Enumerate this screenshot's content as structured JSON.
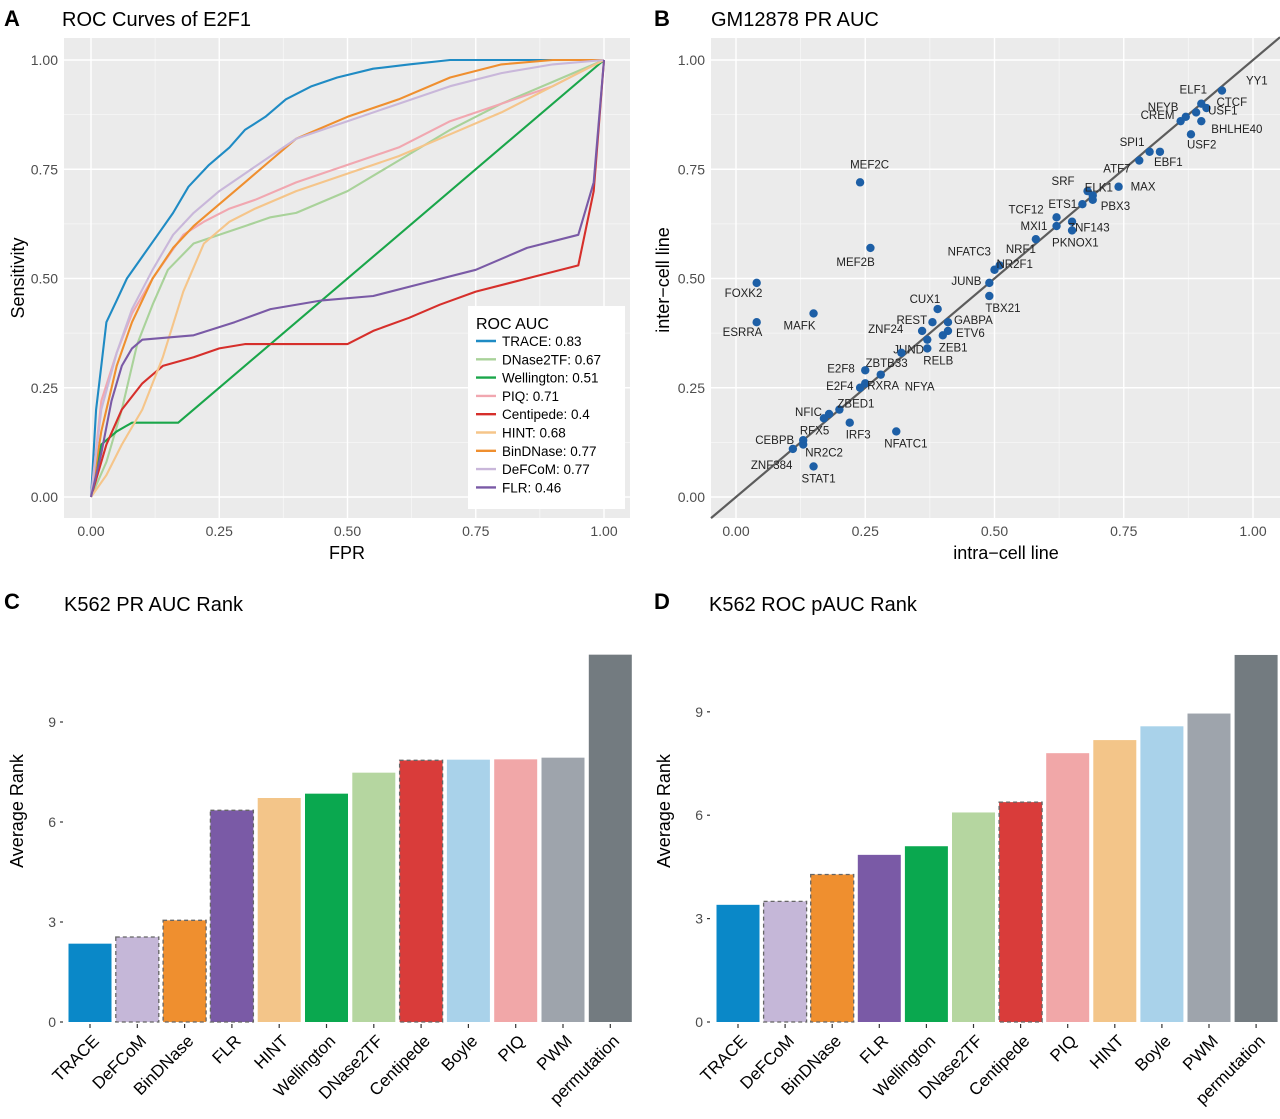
{
  "chart_data": [
    {
      "panel": "A",
      "type": "line",
      "title": "ROC Curves of E2F1",
      "xlabel": "FPR",
      "ylabel": "Sensitivity",
      "xlim": [
        0,
        1
      ],
      "ylim": [
        0,
        1
      ],
      "xticks": [
        "0.00",
        "0.25",
        "0.50",
        "0.75",
        "1.00"
      ],
      "yticks": [
        "0.00",
        "0.25",
        "0.50",
        "0.75",
        "1.00"
      ],
      "grid": true,
      "legend": {
        "title": "ROC AUC",
        "position": "bottom-right"
      },
      "series": [
        {
          "name": "TRACE: 0.83",
          "color": "#1f8bc4",
          "points": [
            [
              0,
              0
            ],
            [
              0.01,
              0.2
            ],
            [
              0.02,
              0.3
            ],
            [
              0.03,
              0.4
            ],
            [
              0.05,
              0.45
            ],
            [
              0.07,
              0.5
            ],
            [
              0.1,
              0.55
            ],
            [
              0.13,
              0.6
            ],
            [
              0.16,
              0.65
            ],
            [
              0.19,
              0.71
            ],
            [
              0.23,
              0.76
            ],
            [
              0.27,
              0.8
            ],
            [
              0.3,
              0.84
            ],
            [
              0.34,
              0.87
            ],
            [
              0.38,
              0.91
            ],
            [
              0.43,
              0.94
            ],
            [
              0.48,
              0.96
            ],
            [
              0.55,
              0.98
            ],
            [
              0.62,
              0.99
            ],
            [
              0.7,
              1.0
            ],
            [
              1.0,
              1.0
            ]
          ]
        },
        {
          "name": "DNase2TF: 0.67",
          "color": "#a9d29a",
          "points": [
            [
              0,
              0
            ],
            [
              0.03,
              0.08
            ],
            [
              0.06,
              0.2
            ],
            [
              0.09,
              0.35
            ],
            [
              0.12,
              0.44
            ],
            [
              0.15,
              0.52
            ],
            [
              0.2,
              0.58
            ],
            [
              0.25,
              0.6
            ],
            [
              0.3,
              0.62
            ],
            [
              0.35,
              0.64
            ],
            [
              0.4,
              0.65
            ],
            [
              0.5,
              0.7
            ],
            [
              0.6,
              0.77
            ],
            [
              0.7,
              0.84
            ],
            [
              0.8,
              0.9
            ],
            [
              0.9,
              0.95
            ],
            [
              1.0,
              1.0
            ]
          ]
        },
        {
          "name": "Wellington: 0.51",
          "color": "#1aa64a",
          "points": [
            [
              0,
              0
            ],
            [
              0.02,
              0.12
            ],
            [
              0.05,
              0.15
            ],
            [
              0.08,
              0.17
            ],
            [
              0.17,
              0.17
            ],
            [
              1.0,
              1.0
            ]
          ]
        },
        {
          "name": "PIQ: 0.71",
          "color": "#f1a7b0",
          "points": [
            [
              0,
              0
            ],
            [
              0.02,
              0.22
            ],
            [
              0.05,
              0.33
            ],
            [
              0.08,
              0.42
            ],
            [
              0.12,
              0.5
            ],
            [
              0.15,
              0.55
            ],
            [
              0.18,
              0.6
            ],
            [
              0.22,
              0.63
            ],
            [
              0.27,
              0.66
            ],
            [
              0.32,
              0.68
            ],
            [
              0.4,
              0.72
            ],
            [
              0.5,
              0.76
            ],
            [
              0.6,
              0.8
            ],
            [
              0.7,
              0.86
            ],
            [
              0.8,
              0.9
            ],
            [
              0.9,
              0.94
            ],
            [
              1.0,
              1.0
            ]
          ]
        },
        {
          "name": "Centipede: 0.4",
          "color": "#d62f2b",
          "points": [
            [
              0,
              0
            ],
            [
              0.03,
              0.12
            ],
            [
              0.06,
              0.2
            ],
            [
              0.1,
              0.26
            ],
            [
              0.14,
              0.3
            ],
            [
              0.2,
              0.32
            ],
            [
              0.25,
              0.34
            ],
            [
              0.3,
              0.35
            ],
            [
              0.5,
              0.35
            ],
            [
              0.55,
              0.38
            ],
            [
              0.62,
              0.41
            ],
            [
              0.68,
              0.44
            ],
            [
              0.75,
              0.47
            ],
            [
              0.85,
              0.5
            ],
            [
              0.95,
              0.53
            ],
            [
              0.98,
              0.7
            ],
            [
              1.0,
              1.0
            ]
          ]
        },
        {
          "name": "HINT: 0.68",
          "color": "#f5c58a",
          "points": [
            [
              0,
              0
            ],
            [
              0.03,
              0.05
            ],
            [
              0.06,
              0.12
            ],
            [
              0.1,
              0.2
            ],
            [
              0.14,
              0.32
            ],
            [
              0.18,
              0.47
            ],
            [
              0.22,
              0.58
            ],
            [
              0.27,
              0.63
            ],
            [
              0.32,
              0.66
            ],
            [
              0.4,
              0.7
            ],
            [
              0.5,
              0.74
            ],
            [
              0.6,
              0.78
            ],
            [
              0.7,
              0.83
            ],
            [
              0.8,
              0.88
            ],
            [
              0.9,
              0.94
            ],
            [
              1.0,
              1.0
            ]
          ]
        },
        {
          "name": "BinDNase: 0.77",
          "color": "#ef8f2f",
          "points": [
            [
              0,
              0
            ],
            [
              0.02,
              0.15
            ],
            [
              0.05,
              0.3
            ],
            [
              0.08,
              0.4
            ],
            [
              0.12,
              0.5
            ],
            [
              0.16,
              0.57
            ],
            [
              0.2,
              0.62
            ],
            [
              0.25,
              0.67
            ],
            [
              0.3,
              0.72
            ],
            [
              0.35,
              0.77
            ],
            [
              0.4,
              0.82
            ],
            [
              0.5,
              0.87
            ],
            [
              0.6,
              0.91
            ],
            [
              0.7,
              0.96
            ],
            [
              0.8,
              0.99
            ],
            [
              0.9,
              1.0
            ],
            [
              1.0,
              1.0
            ]
          ]
        },
        {
          "name": "DeFCoM: 0.77",
          "color": "#c9b7da",
          "points": [
            [
              0,
              0
            ],
            [
              0.02,
              0.2
            ],
            [
              0.05,
              0.33
            ],
            [
              0.08,
              0.43
            ],
            [
              0.12,
              0.52
            ],
            [
              0.16,
              0.6
            ],
            [
              0.2,
              0.65
            ],
            [
              0.25,
              0.7
            ],
            [
              0.3,
              0.74
            ],
            [
              0.35,
              0.78
            ],
            [
              0.4,
              0.82
            ],
            [
              0.5,
              0.86
            ],
            [
              0.6,
              0.9
            ],
            [
              0.7,
              0.94
            ],
            [
              0.8,
              0.97
            ],
            [
              0.9,
              0.99
            ],
            [
              1.0,
              1.0
            ]
          ]
        },
        {
          "name": "FLR: 0.46",
          "color": "#7a5aa6",
          "points": [
            [
              0,
              0
            ],
            [
              0.02,
              0.1
            ],
            [
              0.04,
              0.22
            ],
            [
              0.06,
              0.3
            ],
            [
              0.08,
              0.34
            ],
            [
              0.1,
              0.36
            ],
            [
              0.2,
              0.37
            ],
            [
              0.28,
              0.4
            ],
            [
              0.35,
              0.43
            ],
            [
              0.45,
              0.45
            ],
            [
              0.55,
              0.46
            ],
            [
              0.65,
              0.49
            ],
            [
              0.75,
              0.52
            ],
            [
              0.85,
              0.57
            ],
            [
              0.95,
              0.6
            ],
            [
              0.98,
              0.72
            ],
            [
              1.0,
              1.0
            ]
          ]
        }
      ]
    },
    {
      "panel": "B",
      "type": "scatter",
      "title": "GM12878 PR AUC",
      "xlabel": "intra−cell line",
      "ylabel": "inter−cell line",
      "xlim": [
        -0.05,
        1.05
      ],
      "ylim": [
        -0.05,
        1.05
      ],
      "xticks": [
        "0.00",
        "0.25",
        "0.50",
        "0.75",
        "1.00"
      ],
      "yticks": [
        "0.00",
        "0.25",
        "0.50",
        "0.75",
        "1.00"
      ],
      "grid": true,
      "reference_line": "y = x",
      "point_color": "#1d5fa6",
      "points": [
        {
          "label": "YY1",
          "x": 0.94,
          "y": 0.93
        },
        {
          "label": "ELF1",
          "x": 0.9,
          "y": 0.9
        },
        {
          "label": "CTCF",
          "x": 0.91,
          "y": 0.89
        },
        {
          "label": "NFYB",
          "x": 0.87,
          "y": 0.87
        },
        {
          "label": "USF1",
          "x": 0.89,
          "y": 0.88
        },
        {
          "label": "BHLHE40",
          "x": 0.9,
          "y": 0.86
        },
        {
          "label": "CREM",
          "x": 0.86,
          "y": 0.86
        },
        {
          "label": "USF2",
          "x": 0.88,
          "y": 0.83
        },
        {
          "label": "SPI1",
          "x": 0.8,
          "y": 0.79
        },
        {
          "label": "EBF1",
          "x": 0.82,
          "y": 0.79
        },
        {
          "label": "ATF7",
          "x": 0.78,
          "y": 0.77
        },
        {
          "label": "MAX",
          "x": 0.74,
          "y": 0.71
        },
        {
          "label": "SRF",
          "x": 0.68,
          "y": 0.7
        },
        {
          "label": "ELK1",
          "x": 0.69,
          "y": 0.69
        },
        {
          "label": "PBX3",
          "x": 0.69,
          "y": 0.68
        },
        {
          "label": "ETS1",
          "x": 0.67,
          "y": 0.67
        },
        {
          "label": "ZNF143",
          "x": 0.65,
          "y": 0.63
        },
        {
          "label": "TCF12",
          "x": 0.62,
          "y": 0.64
        },
        {
          "label": "MXI1",
          "x": 0.62,
          "y": 0.62
        },
        {
          "label": "PKNOX1",
          "x": 0.65,
          "y": 0.61
        },
        {
          "label": "NRF1",
          "x": 0.58,
          "y": 0.59
        },
        {
          "label": "MEF2C",
          "x": 0.24,
          "y": 0.72
        },
        {
          "label": "MEF2B",
          "x": 0.26,
          "y": 0.57
        },
        {
          "label": "NFATC3",
          "x": 0.51,
          "y": 0.53
        },
        {
          "label": "NR2F1",
          "x": 0.5,
          "y": 0.52
        },
        {
          "label": "JUNB",
          "x": 0.49,
          "y": 0.49
        },
        {
          "label": "TBX21",
          "x": 0.49,
          "y": 0.46
        },
        {
          "label": "FOXK2",
          "x": 0.04,
          "y": 0.49
        },
        {
          "label": "ESRRA",
          "x": 0.04,
          "y": 0.4
        },
        {
          "label": "MAFK",
          "x": 0.15,
          "y": 0.42
        },
        {
          "label": "CUX1",
          "x": 0.39,
          "y": 0.43
        },
        {
          "label": "REST",
          "x": 0.38,
          "y": 0.4
        },
        {
          "label": "GABPA",
          "x": 0.41,
          "y": 0.4
        },
        {
          "label": "ETV6",
          "x": 0.41,
          "y": 0.38
        },
        {
          "label": "ZNF24",
          "x": 0.36,
          "y": 0.38
        },
        {
          "label": "ZEB1",
          "x": 0.4,
          "y": 0.37
        },
        {
          "label": "JUND",
          "x": 0.37,
          "y": 0.36
        },
        {
          "label": "RELB",
          "x": 0.37,
          "y": 0.34
        },
        {
          "label": "ZBTB33",
          "x": 0.32,
          "y": 0.33
        },
        {
          "label": "NFYA",
          "x": 0.28,
          "y": 0.28
        },
        {
          "label": "E2F8",
          "x": 0.25,
          "y": 0.29
        },
        {
          "label": "E2F4",
          "x": 0.24,
          "y": 0.25
        },
        {
          "label": "RXRA",
          "x": 0.25,
          "y": 0.26
        },
        {
          "label": "NFIC",
          "x": 0.18,
          "y": 0.19
        },
        {
          "label": "ZBED1",
          "x": 0.2,
          "y": 0.2
        },
        {
          "label": "RFX5",
          "x": 0.17,
          "y": 0.18
        },
        {
          "label": "IRF3",
          "x": 0.22,
          "y": 0.17
        },
        {
          "label": "NFATC1",
          "x": 0.31,
          "y": 0.15
        },
        {
          "label": "CEBPB",
          "x": 0.13,
          "y": 0.13
        },
        {
          "label": "NR2C2",
          "x": 0.13,
          "y": 0.12
        },
        {
          "label": "ZNF384",
          "x": 0.11,
          "y": 0.11
        },
        {
          "label": "STAT1",
          "x": 0.15,
          "y": 0.07
        }
      ]
    },
    {
      "panel": "C",
      "type": "bar",
      "title": "K562 PR AUC Rank",
      "xlabel": "",
      "ylabel": "Average Rank",
      "ylim": [
        0,
        11.1
      ],
      "yticks": [
        "0",
        "3",
        "6",
        "9"
      ],
      "grid": false,
      "categories": [
        "TRACE",
        "DeFCoM",
        "BinDNase",
        "FLR",
        "HINT",
        "Wellington",
        "DNase2TF",
        "Centipede",
        "Boyle",
        "PIQ",
        "PWM",
        "permutation"
      ],
      "values": [
        2.35,
        2.55,
        3.05,
        6.35,
        6.72,
        6.85,
        7.48,
        7.85,
        7.87,
        7.88,
        7.93,
        11.02
      ],
      "colors": [
        "#0a88c8",
        "#c5b7d8",
        "#ef8f2f",
        "#7a5aa6",
        "#f3c589",
        "#0aa84f",
        "#b5d6a0",
        "#d93c3a",
        "#a9d2ea",
        "#f1a7a8",
        "#9ea4ac",
        "#737b80"
      ],
      "dashed": [
        false,
        true,
        true,
        true,
        false,
        false,
        false,
        true,
        false,
        false,
        false,
        false
      ]
    },
    {
      "panel": "D",
      "type": "bar",
      "title": "K562 ROC pAUC Rank",
      "xlabel": "",
      "ylabel": "Average Rank",
      "ylim": [
        0,
        11.2
      ],
      "yticks": [
        "0",
        "3",
        "6",
        "9"
      ],
      "grid": false,
      "categories": [
        "TRACE",
        "DeFCoM",
        "BinDNase",
        "FLR",
        "Wellington",
        "DNase2TF",
        "Centipede",
        "PIQ",
        "HINT",
        "Boyle",
        "PWM",
        "permutation"
      ],
      "values": [
        3.4,
        3.5,
        4.28,
        4.85,
        5.1,
        6.08,
        6.38,
        7.8,
        8.18,
        8.58,
        8.95,
        10.65
      ],
      "colors": [
        "#0a88c8",
        "#c5b7d8",
        "#ef8f2f",
        "#7a5aa6",
        "#0aa84f",
        "#b5d6a0",
        "#d93c3a",
        "#f1a7a8",
        "#f3c589",
        "#a9d2ea",
        "#9ea4ac",
        "#737b80"
      ],
      "dashed": [
        false,
        true,
        true,
        false,
        false,
        false,
        true,
        false,
        false,
        false,
        false,
        false
      ]
    }
  ]
}
